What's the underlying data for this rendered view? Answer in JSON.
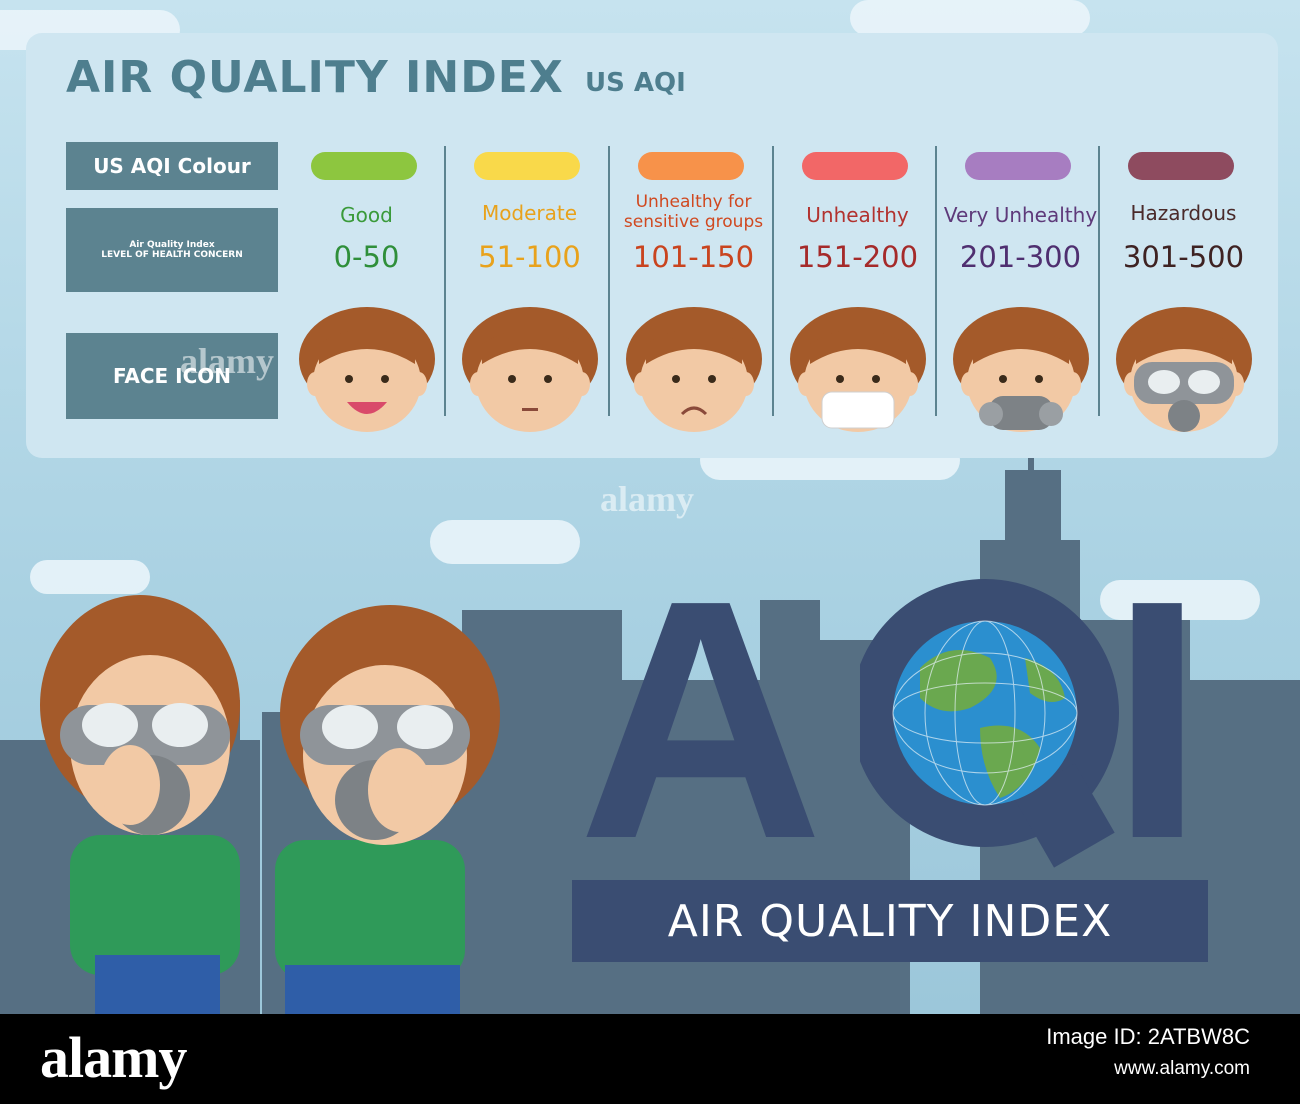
{
  "header": {
    "title": "AIR QUALITY INDEX",
    "subtitle": "US AQI"
  },
  "row_labels": {
    "colour": "US AQI Colour",
    "health_line1": "Air Quality Index",
    "health_line2": "LEVEL OF HEALTH CONCERN",
    "face": "FACE ICON"
  },
  "levels": [
    {
      "label": "Good",
      "range": "0-50",
      "color": "#8dc63f",
      "text_color": "#3a9a3a",
      "range_color": "#2f8f3a",
      "face": "smile"
    },
    {
      "label": "Moderate",
      "range": "51-100",
      "color": "#f9d94a",
      "text_color": "#e8a21c",
      "range_color": "#e8a21c",
      "face": "neutral"
    },
    {
      "label": "Unhealthy for sensitive groups",
      "range": "101-150",
      "color": "#f7924a",
      "text_color": "#d0481f",
      "range_color": "#c9441f",
      "face": "sad"
    },
    {
      "label": "Unhealthy",
      "range": "151-200",
      "color": "#f26767",
      "text_color": "#b2322f",
      "range_color": "#a52a2a",
      "face": "mask"
    },
    {
      "label": "Very Unhealthy",
      "range": "201-300",
      "color": "#a77dc1",
      "text_color": "#5e3a7a",
      "range_color": "#4f2f70",
      "face": "respirator"
    },
    {
      "label": "Hazardous",
      "range": "301-500",
      "color": "#8e4b5f",
      "text_color": "#4a2a2a",
      "range_color": "#3e2222",
      "face": "gasmask"
    }
  ],
  "logo": {
    "letters": [
      "A",
      "Q",
      "I"
    ],
    "banner": "AIR QUALITY INDEX"
  },
  "watermark": {
    "brand": "alamy",
    "image_id": "Image ID: 2ATBW8C",
    "site": "www.alamy.com"
  },
  "colors": {
    "panel_label_bg": "#5c8390",
    "title": "#4e7e8e",
    "logo": "#3a4d72",
    "city": "#566f83"
  }
}
